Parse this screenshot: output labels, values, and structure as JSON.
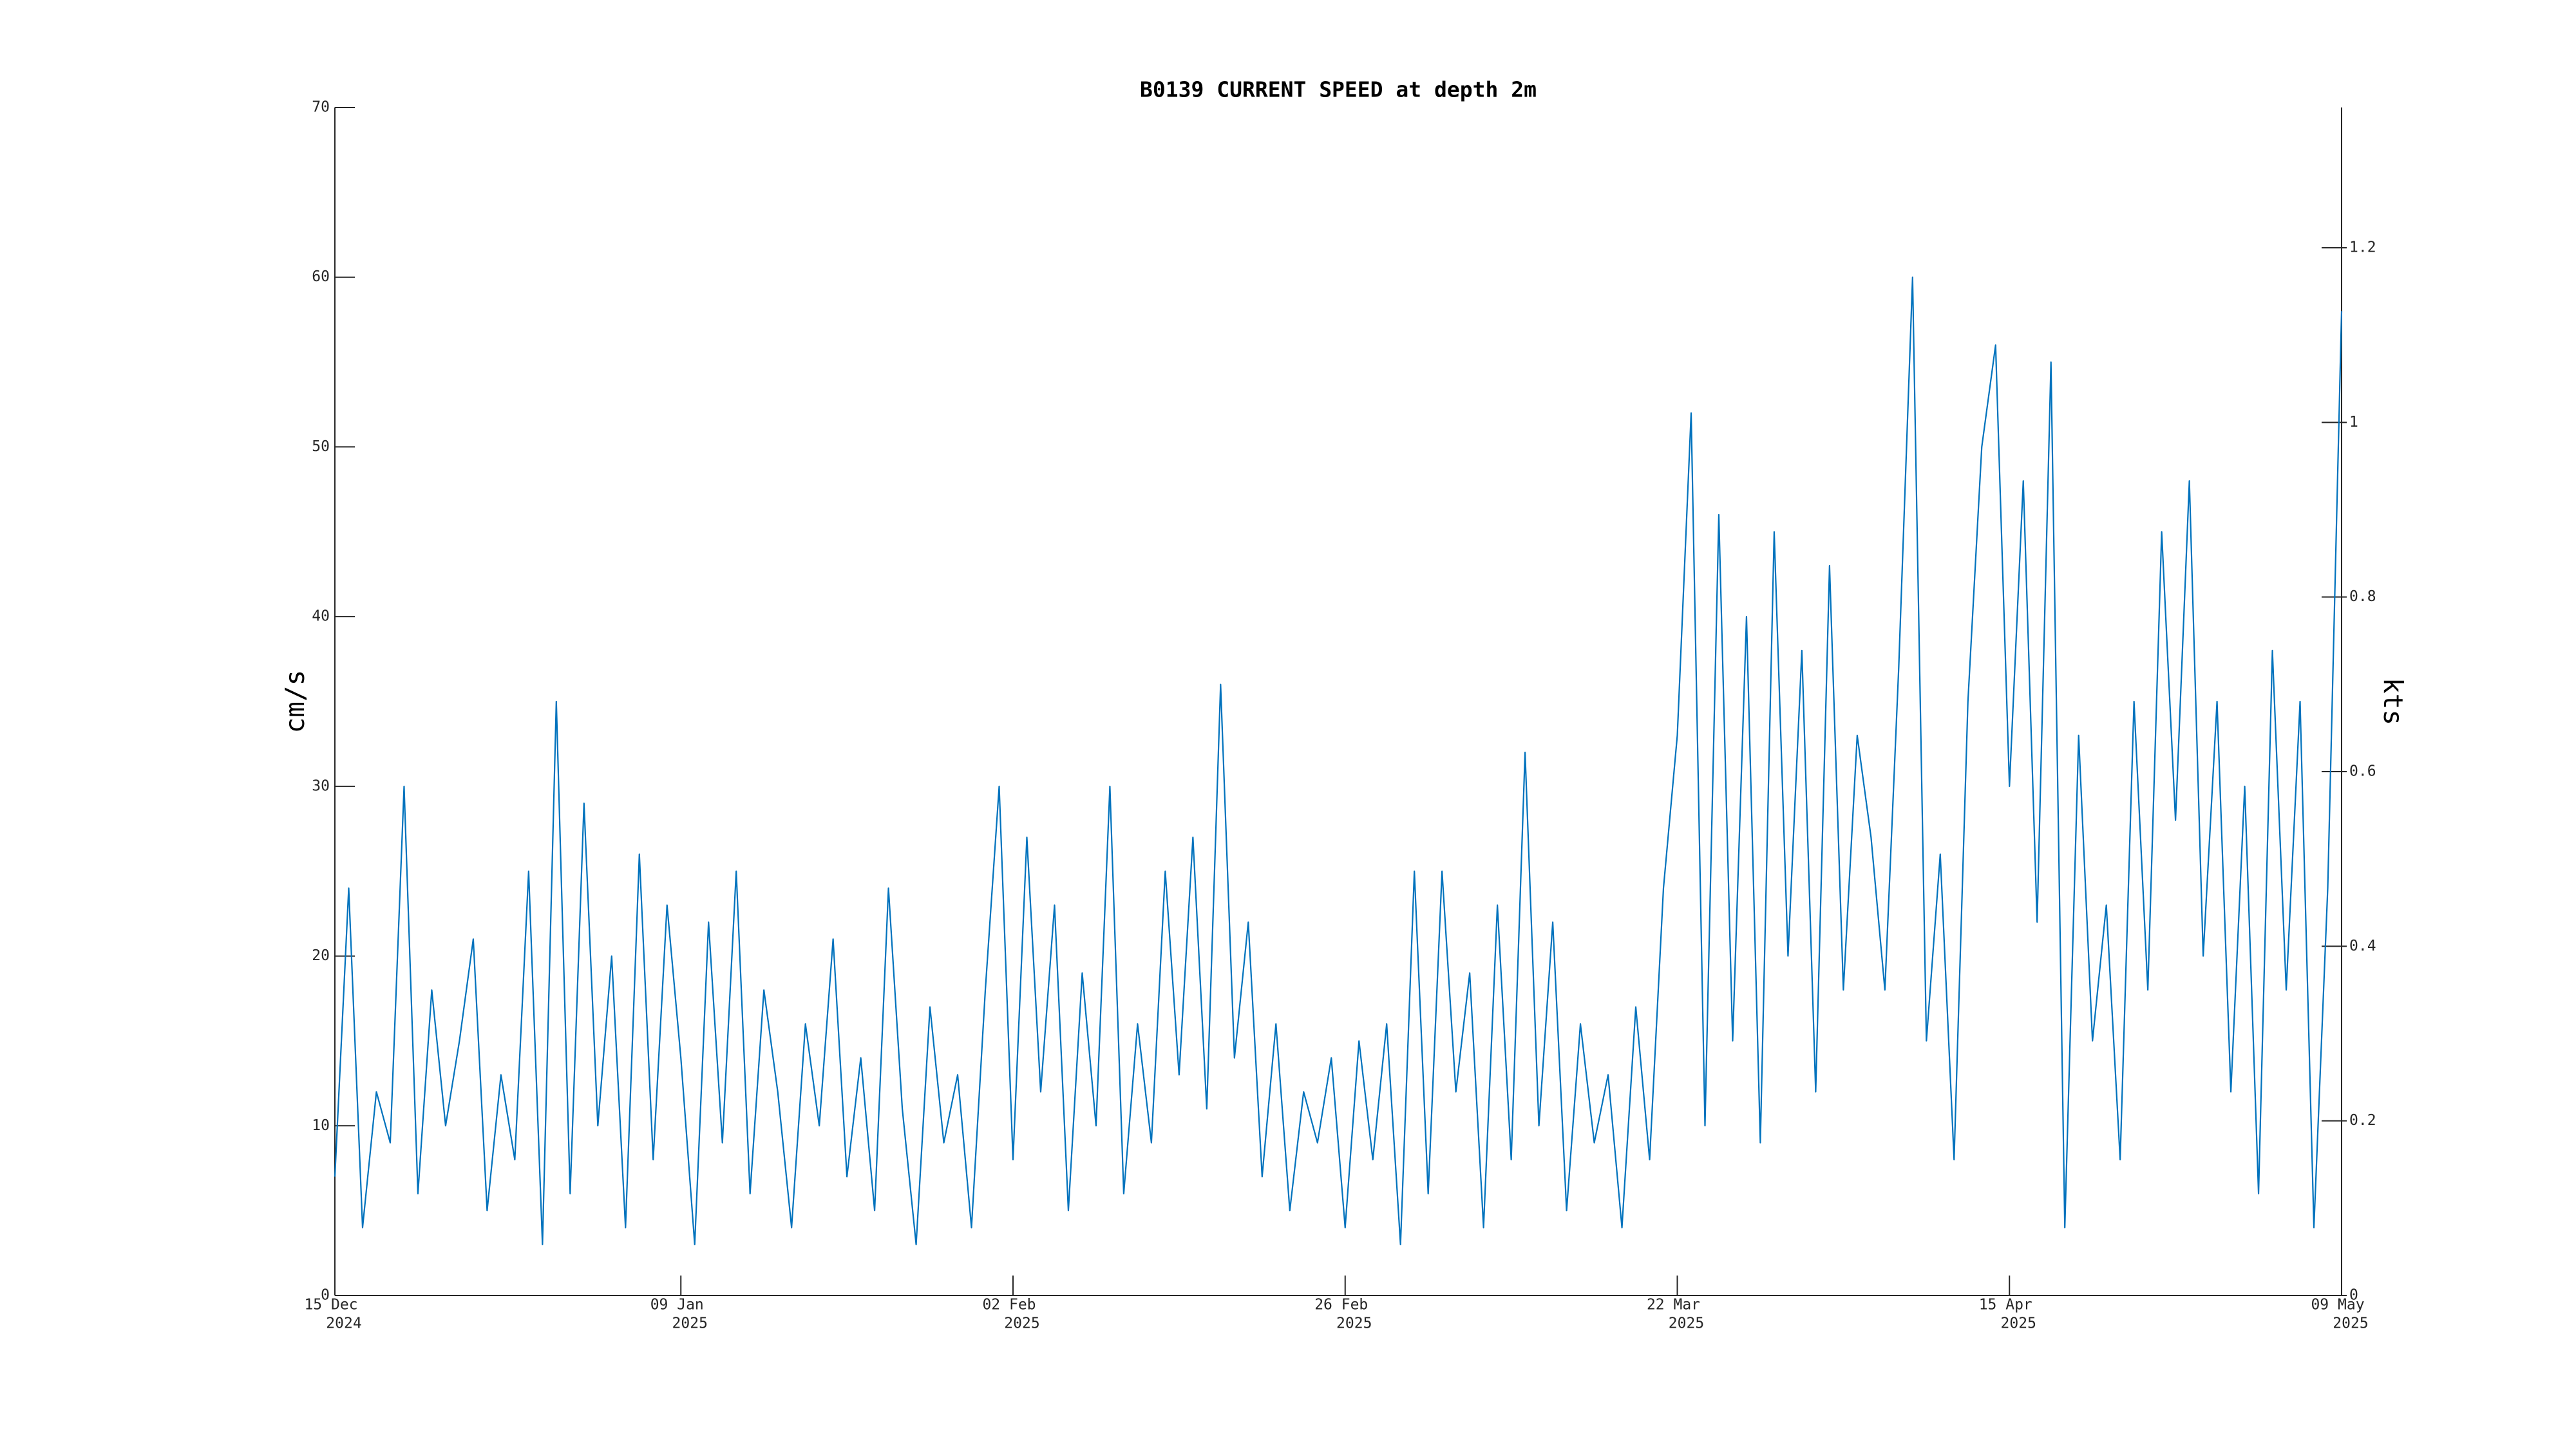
{
  "chart_data": {
    "type": "line",
    "title": "B0139 CURRENT SPEED at depth 2m",
    "y_label": "cm/s",
    "y2_label": "kts",
    "xlim": [
      "2024-12-15",
      "2025-05-09"
    ],
    "xticks": [
      {
        "value": "2024-12-15",
        "label": "15 Dec",
        "year": "2024"
      },
      {
        "value": "2025-01-09",
        "label": "09 Jan",
        "year": "2025"
      },
      {
        "value": "2025-02-02",
        "label": "02 Feb",
        "year": "2025"
      },
      {
        "value": "2025-02-26",
        "label": "26 Feb",
        "year": "2025"
      },
      {
        "value": "2025-03-22",
        "label": "22 Mar",
        "year": "2025"
      },
      {
        "value": "2025-04-15",
        "label": "15 Apr",
        "year": "2025"
      },
      {
        "value": "2025-05-09",
        "label": "09 May",
        "year": "2025"
      }
    ],
    "ylim": [
      0,
      70
    ],
    "yticks": [
      0,
      10,
      20,
      30,
      40,
      50,
      60,
      70
    ],
    "y2lim": [
      0,
      1.3607
    ],
    "y2ticks": [
      0,
      0.2,
      0.4,
      0.6,
      0.8,
      1,
      1.2
    ],
    "x": [
      "2024-12-15",
      "2024-12-16",
      "2024-12-17",
      "2024-12-18",
      "2024-12-19",
      "2024-12-20",
      "2024-12-21",
      "2024-12-22",
      "2024-12-23",
      "2024-12-24",
      "2024-12-25",
      "2024-12-26",
      "2024-12-27",
      "2024-12-28",
      "2024-12-29",
      "2024-12-30",
      "2024-12-31",
      "2025-01-01",
      "2025-01-02",
      "2025-01-03",
      "2025-01-04",
      "2025-01-05",
      "2025-01-06",
      "2025-01-07",
      "2025-01-08",
      "2025-01-09",
      "2025-01-10",
      "2025-01-11",
      "2025-01-12",
      "2025-01-13",
      "2025-01-14",
      "2025-01-15",
      "2025-01-16",
      "2025-01-17",
      "2025-01-18",
      "2025-01-19",
      "2025-01-20",
      "2025-01-21",
      "2025-01-22",
      "2025-01-23",
      "2025-01-24",
      "2025-01-25",
      "2025-01-26",
      "2025-01-27",
      "2025-01-28",
      "2025-01-29",
      "2025-01-30",
      "2025-01-31",
      "2025-02-01",
      "2025-02-02",
      "2025-02-03",
      "2025-02-04",
      "2025-02-05",
      "2025-02-06",
      "2025-02-07",
      "2025-02-08",
      "2025-02-09",
      "2025-02-10",
      "2025-02-11",
      "2025-02-12",
      "2025-02-13",
      "2025-02-14",
      "2025-02-15",
      "2025-02-16",
      "2025-02-17",
      "2025-02-18",
      "2025-02-19",
      "2025-02-20",
      "2025-02-21",
      "2025-02-22",
      "2025-02-23",
      "2025-02-24",
      "2025-02-25",
      "2025-02-26",
      "2025-02-27",
      "2025-02-28",
      "2025-03-01",
      "2025-03-02",
      "2025-03-03",
      "2025-03-04",
      "2025-03-05",
      "2025-03-06",
      "2025-03-07",
      "2025-03-08",
      "2025-03-09",
      "2025-03-10",
      "2025-03-11",
      "2025-03-12",
      "2025-03-13",
      "2025-03-14",
      "2025-03-15",
      "2025-03-16",
      "2025-03-17",
      "2025-03-18",
      "2025-03-19",
      "2025-03-20",
      "2025-03-21",
      "2025-03-22",
      "2025-03-23",
      "2025-03-24",
      "2025-03-25",
      "2025-03-26",
      "2025-03-27",
      "2025-03-28",
      "2025-03-29",
      "2025-03-30",
      "2025-03-31",
      "2025-04-01",
      "2025-04-02",
      "2025-04-03",
      "2025-04-04",
      "2025-04-05",
      "2025-04-06",
      "2025-04-07",
      "2025-04-08",
      "2025-04-09",
      "2025-04-10",
      "2025-04-11",
      "2025-04-12",
      "2025-04-13",
      "2025-04-14",
      "2025-04-15",
      "2025-04-16",
      "2025-04-17",
      "2025-04-18",
      "2025-04-19",
      "2025-04-20",
      "2025-04-21",
      "2025-04-22",
      "2025-04-23",
      "2025-04-24",
      "2025-04-25",
      "2025-04-26",
      "2025-04-27",
      "2025-04-28",
      "2025-04-29",
      "2025-04-30",
      "2025-05-01",
      "2025-05-02",
      "2025-05-03",
      "2025-05-04",
      "2025-05-05",
      "2025-05-06",
      "2025-05-07",
      "2025-05-08",
      "2025-05-09"
    ],
    "series": [
      {
        "color": "#0072bd",
        "values": [
          7,
          24,
          4,
          12,
          9,
          30,
          6,
          18,
          10,
          15,
          21,
          5,
          13,
          8,
          25,
          3,
          35,
          6,
          29,
          10,
          20,
          4,
          26,
          8,
          23,
          14,
          3,
          22,
          9,
          25,
          6,
          18,
          12,
          4,
          16,
          10,
          21,
          7,
          14,
          5,
          24,
          11,
          3,
          17,
          9,
          13,
          4,
          18,
          30,
          8,
          27,
          12,
          23,
          5,
          19,
          10,
          30,
          6,
          16,
          9,
          25,
          13,
          27,
          11,
          36,
          14,
          22,
          7,
          16,
          5,
          12,
          9,
          14,
          4,
          15,
          8,
          16,
          3,
          25,
          6,
          25,
          12,
          19,
          4,
          23,
          8,
          32,
          10,
          22,
          5,
          16,
          9,
          13,
          4,
          17,
          8,
          24,
          33,
          52,
          10,
          46,
          15,
          40,
          9,
          45,
          20,
          38,
          12,
          43,
          18,
          33,
          27,
          18,
          37,
          60,
          15,
          26,
          8,
          35,
          50,
          56,
          30,
          48,
          22,
          55,
          4,
          33,
          15,
          23,
          8,
          35,
          18,
          45,
          28,
          48,
          20,
          35,
          12,
          30,
          6,
          38,
          18,
          35,
          4,
          24,
          58
        ]
      }
    ]
  }
}
